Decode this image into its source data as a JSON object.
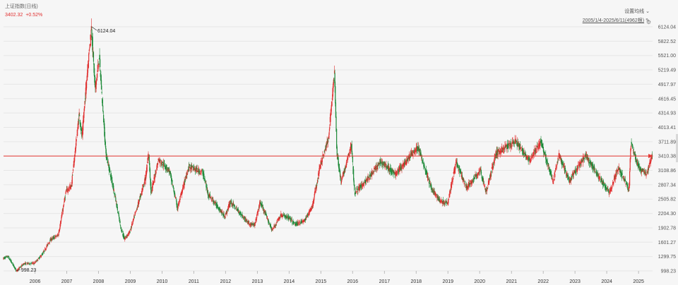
{
  "header": {
    "index_name": "上证指数(日线)",
    "last_price": "3402.32",
    "change_pct": "+0.52%",
    "setting_label": "设置均线 ⌄",
    "range_label": "2005/1/4-2025/6/11(4962根)"
  },
  "icons": {
    "edit": "pencil-icon",
    "side": "settings-icon"
  },
  "colors": {
    "up": "#e03030",
    "down": "#1f8a3a",
    "hline": "#e53935",
    "bg": "#f6f6f6"
  },
  "chart_data": {
    "type": "candlestick",
    "x_ticks": [
      "2006",
      "2007",
      "2008",
      "2009",
      "2010",
      "2011",
      "2012",
      "2013",
      "2014",
      "2015",
      "2016",
      "2017",
      "2018",
      "2019",
      "2020",
      "2021",
      "2022",
      "2023",
      "2024",
      "2025"
    ],
    "y_ticks": [
      "6124.04",
      "5822.52",
      "5521.00",
      "5219.49",
      "4917.97",
      "4616.45",
      "4314.93",
      "4013.41",
      "3711.89",
      "3410.38",
      "3108.86",
      "2807.34",
      "2505.82",
      "2204.30",
      "1902.78",
      "1601.27",
      "1299.75",
      "998.23"
    ],
    "ylim": [
      998.23,
      6124.04
    ],
    "x_range": [
      "2005-01-04",
      "2025-06-11"
    ],
    "annotations": [
      {
        "text": "6124.04",
        "date": "2007-10-16",
        "value": 6124.04
      },
      {
        "text": "998.23",
        "date": "2005-06-06",
        "value": 998.23
      }
    ],
    "horizontal_line": 3410.38,
    "price_path": [
      [
        "2005-01-04",
        1260
      ],
      [
        "2005-03-01",
        1300
      ],
      [
        "2005-06-06",
        998.23
      ],
      [
        "2005-09-01",
        1150
      ],
      [
        "2005-12-30",
        1160
      ],
      [
        "2006-04-01",
        1350
      ],
      [
        "2006-06-30",
        1650
      ],
      [
        "2006-09-30",
        1750
      ],
      [
        "2006-12-29",
        2675
      ],
      [
        "2007-02-27",
        2780
      ],
      [
        "2007-05-29",
        4300
      ],
      [
        "2007-06-30",
        3800
      ],
      [
        "2007-08-30",
        5200
      ],
      [
        "2007-10-16",
        6124.04
      ],
      [
        "2007-11-28",
        4800
      ],
      [
        "2008-01-14",
        5500
      ],
      [
        "2008-03-31",
        3450
      ],
      [
        "2008-06-30",
        2700
      ],
      [
        "2008-09-18",
        1900
      ],
      [
        "2008-10-28",
        1664
      ],
      [
        "2008-12-31",
        1820
      ],
      [
        "2009-03-31",
        2370
      ],
      [
        "2009-06-30",
        2960
      ],
      [
        "2009-08-04",
        3478
      ],
      [
        "2009-09-01",
        2640
      ],
      [
        "2009-11-24",
        3338
      ],
      [
        "2010-03-31",
        3100
      ],
      [
        "2010-07-02",
        2320
      ],
      [
        "2010-11-08",
        3186
      ],
      [
        "2011-04-18",
        3067
      ],
      [
        "2011-06-20",
        2610
      ],
      [
        "2011-10-24",
        2300
      ],
      [
        "2011-12-28",
        2134
      ],
      [
        "2012-03-01",
        2450
      ],
      [
        "2012-09-26",
        2000
      ],
      [
        "2012-12-04",
        1949
      ],
      [
        "2013-02-06",
        2444
      ],
      [
        "2013-06-25",
        1849
      ],
      [
        "2013-09-30",
        2170
      ],
      [
        "2013-12-31",
        2116
      ],
      [
        "2014-03-12",
        1974
      ],
      [
        "2014-06-30",
        2048
      ],
      [
        "2014-09-30",
        2360
      ],
      [
        "2014-12-31",
        3235
      ],
      [
        "2015-03-31",
        3750
      ],
      [
        "2015-06-12",
        5178
      ],
      [
        "2015-07-08",
        3507
      ],
      [
        "2015-08-26",
        2850
      ],
      [
        "2015-12-23",
        3650
      ],
      [
        "2016-01-28",
        2638
      ],
      [
        "2016-06-30",
        2930
      ],
      [
        "2016-11-29",
        3300
      ],
      [
        "2017-05-11",
        3022
      ],
      [
        "2017-11-14",
        3450
      ],
      [
        "2018-01-29",
        3587
      ],
      [
        "2018-07-05",
        2700
      ],
      [
        "2018-10-18",
        2449
      ],
      [
        "2019-01-04",
        2440
      ],
      [
        "2019-04-08",
        3288
      ],
      [
        "2019-08-06",
        2733
      ],
      [
        "2020-01-13",
        3115
      ],
      [
        "2020-03-19",
        2646
      ],
      [
        "2020-07-09",
        3458
      ],
      [
        "2021-02-18",
        3731
      ],
      [
        "2021-07-28",
        3312
      ],
      [
        "2021-12-13",
        3708
      ],
      [
        "2022-04-27",
        2863
      ],
      [
        "2022-07-04",
        3424
      ],
      [
        "2022-10-31",
        2885
      ],
      [
        "2023-05-09",
        3418
      ],
      [
        "2023-10-23",
        2923
      ],
      [
        "2024-02-05",
        2635
      ],
      [
        "2024-05-20",
        3174
      ],
      [
        "2024-09-18",
        2689
      ],
      [
        "2024-10-08",
        3674
      ],
      [
        "2025-01-13",
        3140
      ],
      [
        "2025-04-07",
        3040
      ],
      [
        "2025-06-11",
        3402.32
      ]
    ]
  }
}
